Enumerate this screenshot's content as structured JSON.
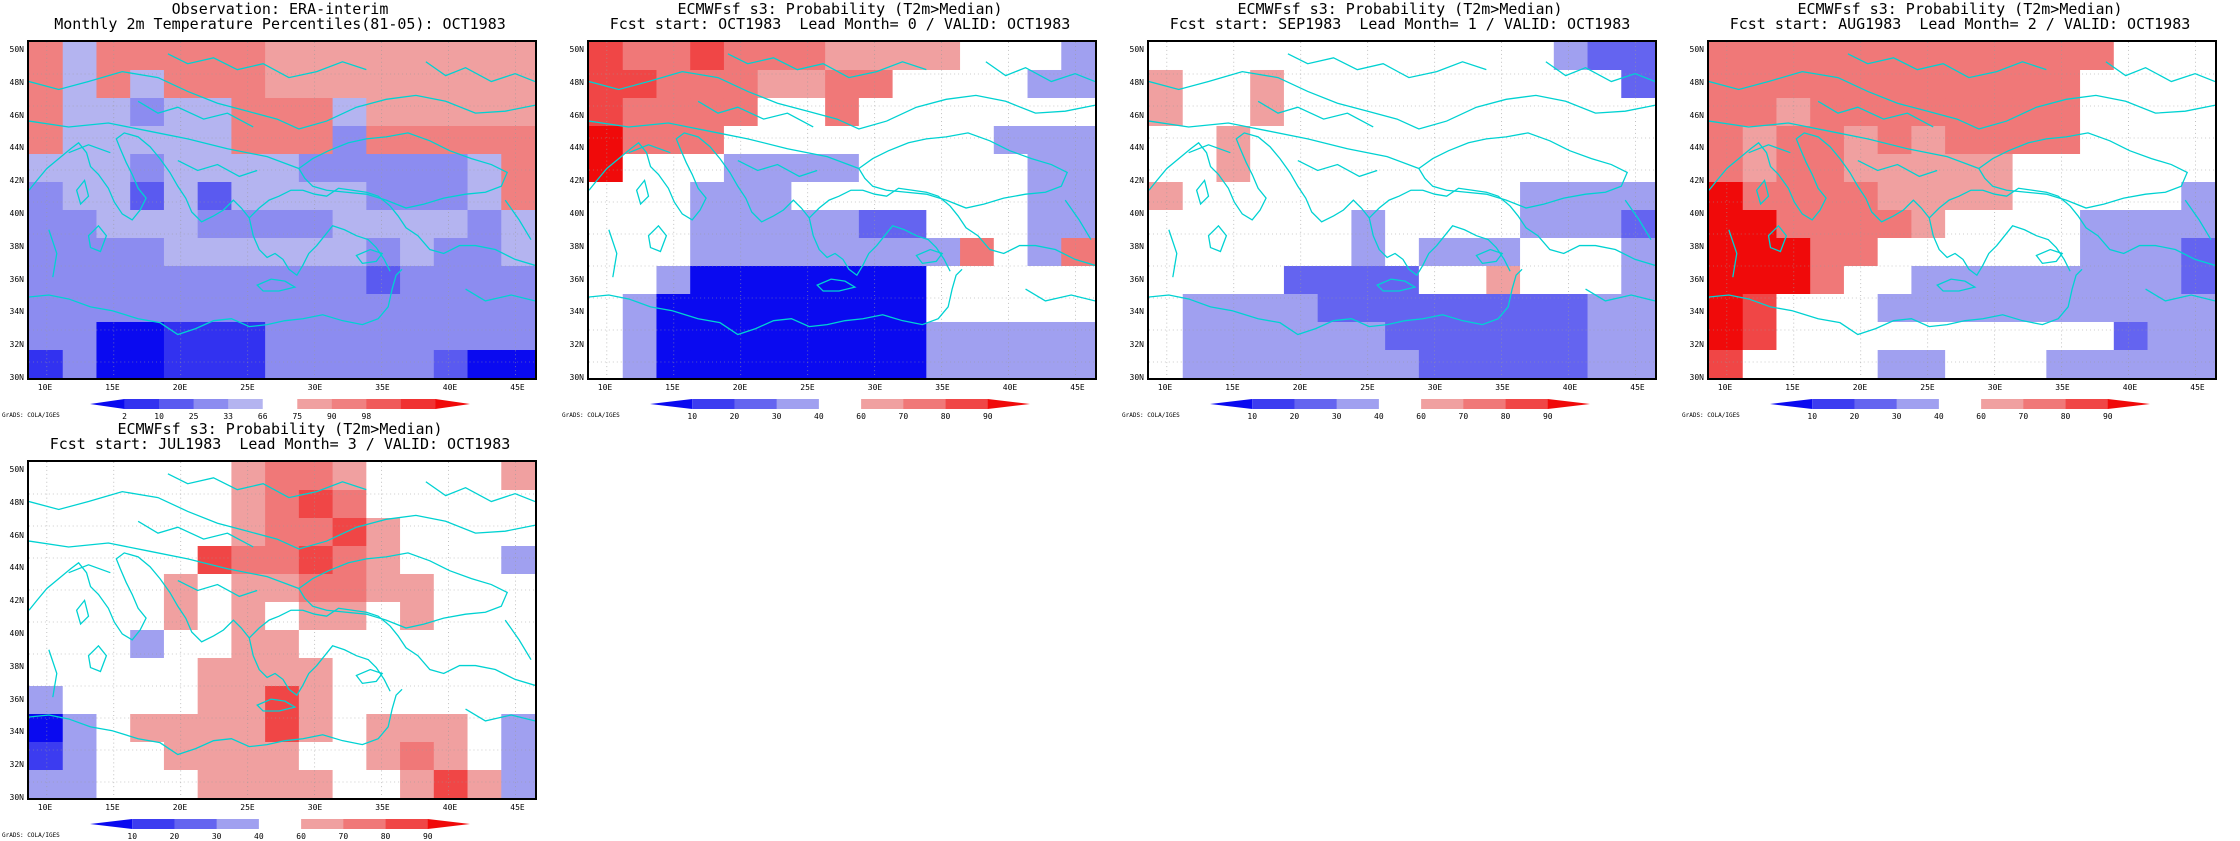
{
  "credit": "GrADS: COLA/IGES",
  "lat_labels": [
    "30N",
    "32N",
    "34N",
    "36N",
    "38N",
    "40N",
    "42N",
    "44N",
    "46N",
    "48N",
    "50N"
  ],
  "lon_labels": [
    "10E",
    "15E",
    "20E",
    "25E",
    "30E",
    "35E",
    "40E",
    "45E"
  ],
  "colors": {
    "percentile": [
      "#0a0af0",
      "#3232f0",
      "#5a5af0",
      "#8c8cf0",
      "#b4b4f0",
      "#ffffff",
      "#f0a0a0",
      "#f08080",
      "#f05a5a",
      "#f03232",
      "#f00a0a"
    ],
    "probability": [
      "#0a0af0",
      "#3c3cf0",
      "#6464f0",
      "#a0a0f0",
      "#ffffff",
      "#f0a0a0",
      "#f07878",
      "#f04646",
      "#f00a0a"
    ],
    "coast": "#00d2d2"
  },
  "panels": [
    {
      "id": "obs",
      "title1": "Observation: ERA-interim",
      "title2": "Monthly 2m Temperature Percentiles(81-05): OCT1983",
      "scale": "percentile",
      "colorbar_labels": [
        "2",
        "10",
        "25",
        "33",
        "66",
        "75",
        "90",
        "98"
      ],
      "grid": [
        "wwwwwwwwwwwwwwwwwwwwwwwwwwwwwwwwwwwwwwwwwwwwwwwwwwwwrrrrrrrrwwwwwwwwwwwwwwwwwwwwwwwwwwwwwwwwwwwwwww",
        "wwwwwwwwwwwwwwwwwwwwwwwwwwwwwwwwwwwwwwwwwwwwwwwwwwwwrrrrrrrrwwwwwwwwwwwwwwwwwwwwwwwwwwwwwwwwwwwwwww"
      ],
      "cells": [
        [
          7,
          4,
          7,
          7,
          7,
          7,
          7,
          6,
          6,
          6,
          6,
          6,
          6,
          6,
          6
        ],
        [
          7,
          4,
          7,
          4,
          7,
          7,
          7,
          6,
          6,
          6,
          6,
          6,
          6,
          6,
          6
        ],
        [
          7,
          4,
          4,
          3,
          4,
          4,
          7,
          7,
          7,
          4,
          6,
          6,
          6,
          6,
          6
        ],
        [
          7,
          4,
          4,
          4,
          4,
          4,
          7,
          7,
          7,
          3,
          7,
          7,
          7,
          7,
          7
        ],
        [
          4,
          4,
          4,
          3,
          4,
          4,
          4,
          4,
          3,
          3,
          3,
          3,
          3,
          4,
          7
        ],
        [
          3,
          4,
          4,
          2,
          4,
          2,
          4,
          4,
          4,
          4,
          3,
          3,
          3,
          4,
          7
        ],
        [
          3,
          3,
          4,
          4,
          4,
          3,
          3,
          3,
          3,
          4,
          4,
          4,
          4,
          3,
          4
        ],
        [
          3,
          3,
          3,
          3,
          4,
          4,
          4,
          4,
          4,
          4,
          3,
          4,
          3,
          3,
          4
        ],
        [
          3,
          3,
          3,
          3,
          3,
          3,
          3,
          3,
          3,
          3,
          2,
          3,
          3,
          3,
          3
        ],
        [
          3,
          3,
          3,
          3,
          3,
          3,
          3,
          3,
          3,
          3,
          3,
          3,
          3,
          3,
          3
        ],
        [
          3,
          3,
          0,
          0,
          1,
          1,
          1,
          3,
          3,
          3,
          3,
          3,
          3,
          3,
          3
        ],
        [
          1,
          3,
          0,
          0,
          1,
          1,
          1,
          3,
          3,
          3,
          3,
          3,
          2,
          0,
          0
        ]
      ]
    },
    {
      "id": "lead0",
      "title1": "ECMWFsf s3: Probability (T2m>Median)",
      "title2": "Fcst start: OCT1983  Lead Month= 0 / VALID: OCT1983",
      "scale": "probability",
      "colorbar_labels": [
        "10",
        "20",
        "30",
        "40",
        "60",
        "70",
        "80",
        "90"
      ],
      "cells": [
        [
          7,
          6,
          6,
          7,
          6,
          6,
          6,
          5,
          5,
          5,
          5,
          4,
          4,
          4,
          3
        ],
        [
          7,
          7,
          6,
          6,
          6,
          5,
          5,
          6,
          6,
          4,
          4,
          4,
          4,
          3,
          3
        ],
        [
          7,
          6,
          6,
          6,
          6,
          4,
          4,
          6,
          4,
          4,
          4,
          4,
          4,
          4,
          4
        ],
        [
          8,
          6,
          6,
          6,
          4,
          4,
          4,
          4,
          4,
          4,
          4,
          4,
          3,
          3,
          3
        ],
        [
          8,
          4,
          4,
          4,
          3,
          3,
          3,
          3,
          4,
          4,
          4,
          4,
          4,
          3,
          3
        ],
        [
          4,
          4,
          4,
          3,
          3,
          3,
          4,
          4,
          4,
          4,
          4,
          4,
          4,
          3,
          3
        ],
        [
          4,
          4,
          4,
          3,
          3,
          3,
          3,
          3,
          2,
          2,
          4,
          4,
          4,
          3,
          3
        ],
        [
          4,
          4,
          4,
          3,
          3,
          3,
          3,
          3,
          3,
          3,
          3,
          6,
          4,
          3,
          6
        ],
        [
          4,
          4,
          3,
          0,
          0,
          0,
          0,
          0,
          0,
          0,
          4,
          4,
          4,
          4,
          4
        ],
        [
          4,
          3,
          0,
          0,
          0,
          0,
          0,
          0,
          0,
          0,
          4,
          4,
          4,
          4,
          4
        ],
        [
          4,
          3,
          0,
          0,
          0,
          0,
          0,
          0,
          0,
          0,
          3,
          3,
          3,
          3,
          3
        ],
        [
          4,
          3,
          0,
          0,
          0,
          0,
          0,
          0,
          0,
          0,
          3,
          3,
          3,
          3,
          3
        ]
      ]
    },
    {
      "id": "lead1",
      "title1": "ECMWFsf s3: Probability (T2m>Median)",
      "title2": "Fcst start: SEP1983  Lead Month= 1 / VALID: OCT1983",
      "scale": "probability",
      "colorbar_labels": [
        "10",
        "20",
        "30",
        "40",
        "60",
        "70",
        "80",
        "90"
      ],
      "cells": [
        [
          4,
          4,
          4,
          4,
          4,
          4,
          4,
          4,
          4,
          4,
          4,
          4,
          3,
          2,
          2
        ],
        [
          5,
          4,
          4,
          5,
          4,
          4,
          4,
          4,
          4,
          4,
          4,
          4,
          4,
          4,
          2
        ],
        [
          5,
          4,
          4,
          5,
          4,
          4,
          4,
          4,
          4,
          4,
          4,
          4,
          4,
          4,
          4
        ],
        [
          4,
          4,
          5,
          4,
          4,
          4,
          4,
          4,
          4,
          4,
          4,
          4,
          4,
          4,
          4
        ],
        [
          4,
          4,
          5,
          4,
          4,
          4,
          4,
          4,
          4,
          4,
          4,
          4,
          4,
          4,
          4
        ],
        [
          5,
          4,
          4,
          4,
          4,
          4,
          4,
          4,
          4,
          4,
          4,
          3,
          3,
          3,
          3
        ],
        [
          4,
          4,
          4,
          4,
          4,
          4,
          3,
          4,
          4,
          4,
          4,
          3,
          3,
          3,
          2
        ],
        [
          4,
          4,
          4,
          4,
          4,
          4,
          3,
          4,
          3,
          3,
          3,
          4,
          4,
          4,
          3
        ],
        [
          4,
          4,
          4,
          4,
          2,
          2,
          2,
          2,
          4,
          4,
          5,
          4,
          4,
          4,
          3
        ],
        [
          4,
          3,
          3,
          3,
          3,
          2,
          2,
          2,
          2,
          2,
          2,
          2,
          2,
          3,
          3
        ],
        [
          4,
          3,
          3,
          3,
          3,
          3,
          3,
          2,
          2,
          2,
          2,
          2,
          2,
          3,
          3
        ],
        [
          4,
          3,
          3,
          3,
          3,
          3,
          3,
          3,
          2,
          2,
          2,
          2,
          2,
          3,
          3
        ]
      ]
    },
    {
      "id": "lead2",
      "title1": "ECMWFsf s3: Probability (T2m>Median)",
      "title2": "Fcst start: AUG1983  Lead Month= 2 / VALID: OCT1983",
      "scale": "probability",
      "colorbar_labels": [
        "10",
        "20",
        "30",
        "40",
        "60",
        "70",
        "80",
        "90"
      ],
      "cells": [
        [
          6,
          6,
          6,
          6,
          6,
          6,
          6,
          6,
          6,
          6,
          6,
          6,
          4,
          4,
          4
        ],
        [
          6,
          6,
          6,
          6,
          6,
          6,
          6,
          6,
          6,
          6,
          6,
          4,
          4,
          4,
          4
        ],
        [
          6,
          6,
          5,
          6,
          6,
          6,
          6,
          6,
          6,
          6,
          6,
          4,
          4,
          4,
          4
        ],
        [
          6,
          5,
          6,
          6,
          5,
          6,
          5,
          6,
          6,
          6,
          6,
          4,
          4,
          4,
          4
        ],
        [
          6,
          5,
          6,
          6,
          5,
          5,
          5,
          5,
          5,
          4,
          4,
          4,
          4,
          4,
          4
        ],
        [
          8,
          6,
          6,
          6,
          6,
          5,
          5,
          5,
          5,
          4,
          4,
          4,
          4,
          4,
          3
        ],
        [
          8,
          8,
          6,
          6,
          6,
          6,
          5,
          4,
          4,
          4,
          4,
          3,
          3,
          3,
          3
        ],
        [
          8,
          8,
          8,
          6,
          6,
          4,
          4,
          4,
          4,
          4,
          4,
          3,
          3,
          3,
          2
        ],
        [
          8,
          8,
          8,
          6,
          4,
          4,
          3,
          3,
          3,
          3,
          3,
          3,
          3,
          3,
          2
        ],
        [
          8,
          7,
          4,
          4,
          4,
          3,
          3,
          3,
          3,
          3,
          3,
          3,
          3,
          3,
          3
        ],
        [
          8,
          7,
          4,
          4,
          4,
          4,
          4,
          4,
          4,
          4,
          4,
          4,
          2,
          3,
          3
        ],
        [
          7,
          4,
          4,
          4,
          4,
          3,
          3,
          4,
          4,
          4,
          3,
          3,
          3,
          3,
          3
        ]
      ]
    },
    {
      "id": "lead3",
      "title1": "ECMWFsf s3: Probability (T2m>Median)",
      "title2": "Fcst start: JUL1983  Lead Month= 3 / VALID: OCT1983",
      "scale": "probability",
      "colorbar_labels": [
        "10",
        "20",
        "30",
        "40",
        "60",
        "70",
        "80",
        "90"
      ],
      "cells": [
        [
          4,
          4,
          4,
          4,
          4,
          4,
          5,
          6,
          6,
          5,
          4,
          4,
          4,
          4,
          5
        ],
        [
          4,
          4,
          4,
          4,
          4,
          4,
          5,
          6,
          7,
          6,
          4,
          4,
          4,
          4,
          4
        ],
        [
          4,
          4,
          4,
          4,
          4,
          4,
          5,
          6,
          6,
          7,
          5,
          4,
          4,
          4,
          4
        ],
        [
          4,
          4,
          4,
          4,
          4,
          7,
          6,
          6,
          7,
          6,
          5,
          4,
          4,
          4,
          3
        ],
        [
          4,
          4,
          4,
          4,
          5,
          4,
          5,
          5,
          6,
          6,
          5,
          5,
          4,
          4,
          4
        ],
        [
          4,
          4,
          4,
          4,
          5,
          4,
          5,
          4,
          5,
          5,
          4,
          5,
          4,
          4,
          4
        ],
        [
          4,
          4,
          4,
          3,
          4,
          4,
          5,
          5,
          4,
          4,
          4,
          4,
          4,
          4,
          4
        ],
        [
          4,
          4,
          4,
          4,
          4,
          5,
          5,
          5,
          5,
          4,
          4,
          4,
          4,
          4,
          4
        ],
        [
          3,
          4,
          4,
          4,
          4,
          5,
          5,
          7,
          5,
          4,
          4,
          4,
          4,
          4,
          4
        ],
        [
          0,
          3,
          4,
          5,
          5,
          5,
          5,
          7,
          5,
          4,
          5,
          5,
          5,
          4,
          3
        ],
        [
          1,
          3,
          4,
          4,
          5,
          5,
          5,
          5,
          4,
          4,
          5,
          6,
          5,
          4,
          3
        ],
        [
          3,
          3,
          4,
          4,
          4,
          5,
          5,
          5,
          5,
          4,
          4,
          5,
          7,
          5,
          3
        ]
      ]
    }
  ]
}
